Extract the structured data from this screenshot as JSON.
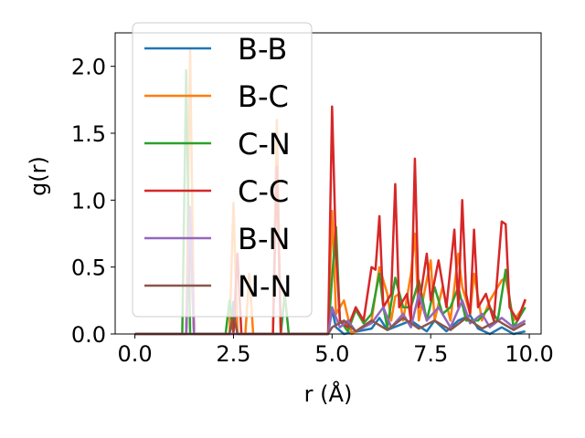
{
  "chart_data": {
    "type": "line",
    "title": "",
    "xlabel": "r (Å)",
    "ylabel": "g(r)",
    "xlim": [
      -0.5,
      10.3
    ],
    "ylim": [
      0,
      2.25
    ],
    "xticks": [
      0.0,
      2.5,
      5.0,
      7.5,
      10.0
    ],
    "xtick_labels": [
      "0.0",
      "2.5",
      "5.0",
      "7.5",
      "10.0"
    ],
    "yticks": [
      0.0,
      0.5,
      1.0,
      1.5,
      2.0
    ],
    "ytick_labels": [
      "0.0",
      "0.5",
      "1.0",
      "1.5",
      "2.0"
    ],
    "grid": false,
    "legend_position": "upper-left",
    "series": [
      {
        "name": "B-B",
        "color": "#1f77b4",
        "points": [
          [
            0.0,
            0
          ],
          [
            2.4,
            0
          ],
          [
            2.5,
            0.24
          ],
          [
            2.6,
            0
          ],
          [
            4.9,
            0
          ],
          [
            5.0,
            0.18
          ],
          [
            5.1,
            0.05
          ],
          [
            5.3,
            0
          ],
          [
            6.0,
            0.04
          ],
          [
            6.2,
            0.12
          ],
          [
            6.4,
            0.03
          ],
          [
            7.0,
            0.1
          ],
          [
            7.4,
            0.02
          ],
          [
            7.6,
            0.1
          ],
          [
            7.9,
            0.02
          ],
          [
            8.2,
            0.1
          ],
          [
            8.5,
            0.14
          ],
          [
            8.7,
            0.04
          ],
          [
            9.0,
            0
          ],
          [
            9.3,
            0.05
          ],
          [
            9.6,
            0
          ],
          [
            9.9,
            0.02
          ]
        ]
      },
      {
        "name": "B-C",
        "color": "#ff7f0e",
        "points": [
          [
            0.0,
            0
          ],
          [
            1.3,
            0
          ],
          [
            1.4,
            2.12
          ],
          [
            1.5,
            0
          ],
          [
            2.4,
            0
          ],
          [
            2.5,
            0.98
          ],
          [
            2.6,
            0
          ],
          [
            2.8,
            0
          ],
          [
            2.9,
            0.45
          ],
          [
            3.0,
            0
          ],
          [
            3.5,
            0
          ],
          [
            3.6,
            1.6
          ],
          [
            3.7,
            0
          ],
          [
            4.9,
            0
          ],
          [
            5.0,
            0.92
          ],
          [
            5.1,
            0.15
          ],
          [
            5.3,
            0.25
          ],
          [
            5.5,
            0
          ],
          [
            6.0,
            0.1
          ],
          [
            6.2,
            0.5
          ],
          [
            6.4,
            0.3
          ],
          [
            6.5,
            0.1
          ],
          [
            6.6,
            0.28
          ],
          [
            6.7,
            0.3
          ],
          [
            6.8,
            0.1
          ],
          [
            7.0,
            0.45
          ],
          [
            7.1,
            0.75
          ],
          [
            7.2,
            0.1
          ],
          [
            7.5,
            0.55
          ],
          [
            7.6,
            0.1
          ],
          [
            7.8,
            0.35
          ],
          [
            8.0,
            0.1
          ],
          [
            8.2,
            0.6
          ],
          [
            8.3,
            0.35
          ],
          [
            8.5,
            0.15
          ],
          [
            8.6,
            0.45
          ],
          [
            8.8,
            0.1
          ],
          [
            9.0,
            0.25
          ],
          [
            9.3,
            0.4
          ],
          [
            9.4,
            0.42
          ],
          [
            9.6,
            0.1
          ],
          [
            9.8,
            0.18
          ],
          [
            9.9,
            0.25
          ]
        ]
      },
      {
        "name": "C-N",
        "color": "#2ca02c",
        "points": [
          [
            0.0,
            0
          ],
          [
            1.2,
            0
          ],
          [
            1.3,
            1.97
          ],
          [
            1.4,
            0
          ],
          [
            2.3,
            0
          ],
          [
            2.4,
            0.25
          ],
          [
            2.5,
            0
          ],
          [
            3.7,
            0
          ],
          [
            3.8,
            0.3
          ],
          [
            3.9,
            0
          ],
          [
            4.9,
            0
          ],
          [
            5.0,
            0.42
          ],
          [
            5.1,
            0.8
          ],
          [
            5.2,
            0.1
          ],
          [
            5.4,
            0.02
          ],
          [
            5.6,
            0.18
          ],
          [
            5.8,
            0.08
          ],
          [
            6.0,
            0.15
          ],
          [
            6.2,
            0.45
          ],
          [
            6.3,
            0.2
          ],
          [
            6.4,
            0.05
          ],
          [
            6.6,
            0.42
          ],
          [
            6.8,
            0.2
          ],
          [
            7.0,
            0.2
          ],
          [
            7.2,
            0.4
          ],
          [
            7.4,
            0.1
          ],
          [
            7.6,
            0.35
          ],
          [
            7.8,
            0.15
          ],
          [
            8.0,
            0.2
          ],
          [
            8.2,
            0.35
          ],
          [
            8.4,
            0.1
          ],
          [
            8.7,
            0.1
          ],
          [
            9.0,
            0.2
          ],
          [
            9.2,
            0.1
          ],
          [
            9.4,
            0.48
          ],
          [
            9.6,
            0.05
          ],
          [
            9.9,
            0.2
          ]
        ]
      },
      {
        "name": "C-C",
        "color": "#d62728",
        "points": [
          [
            0.0,
            0
          ],
          [
            1.3,
            0
          ],
          [
            1.4,
            0.8
          ],
          [
            1.5,
            0
          ],
          [
            2.5,
            0
          ],
          [
            2.6,
            0.6
          ],
          [
            2.7,
            0
          ],
          [
            3.5,
            0
          ],
          [
            3.6,
            1.25
          ],
          [
            3.7,
            0
          ],
          [
            4.9,
            0
          ],
          [
            5.0,
            1.7
          ],
          [
            5.1,
            0.6
          ],
          [
            5.2,
            0.1
          ],
          [
            5.4,
            0.05
          ],
          [
            5.6,
            0.2
          ],
          [
            5.8,
            0.1
          ],
          [
            6.0,
            0.5
          ],
          [
            6.1,
            0.48
          ],
          [
            6.2,
            0.88
          ],
          [
            6.3,
            0.2
          ],
          [
            6.5,
            0.3
          ],
          [
            6.6,
            1.12
          ],
          [
            6.7,
            0.2
          ],
          [
            6.9,
            0.3
          ],
          [
            7.0,
            0.1
          ],
          [
            7.1,
            1.31
          ],
          [
            7.2,
            0.2
          ],
          [
            7.4,
            0.6
          ],
          [
            7.5,
            0.25
          ],
          [
            7.7,
            0.55
          ],
          [
            7.9,
            0.2
          ],
          [
            8.1,
            0.78
          ],
          [
            8.2,
            0.2
          ],
          [
            8.3,
            1.0
          ],
          [
            8.4,
            0.3
          ],
          [
            8.5,
            0.15
          ],
          [
            8.6,
            0.78
          ],
          [
            8.7,
            0.2
          ],
          [
            8.9,
            0.3
          ],
          [
            9.1,
            0.1
          ],
          [
            9.3,
            0.84
          ],
          [
            9.4,
            0.82
          ],
          [
            9.5,
            0.2
          ],
          [
            9.7,
            0.1
          ],
          [
            9.9,
            0.26
          ]
        ]
      },
      {
        "name": "B-N",
        "color": "#9467bd",
        "points": [
          [
            0.0,
            0
          ],
          [
            1.3,
            0
          ],
          [
            1.4,
            0.95
          ],
          [
            1.5,
            0
          ],
          [
            4.9,
            0
          ],
          [
            5.0,
            0.2
          ],
          [
            5.2,
            0.05
          ],
          [
            5.4,
            0.1
          ],
          [
            5.6,
            0.02
          ],
          [
            6.0,
            0.08
          ],
          [
            6.3,
            0.2
          ],
          [
            6.5,
            0.05
          ],
          [
            6.8,
            0.15
          ],
          [
            7.0,
            0.05
          ],
          [
            7.2,
            0.3
          ],
          [
            7.4,
            0.1
          ],
          [
            7.7,
            0.2
          ],
          [
            8.0,
            0.05
          ],
          [
            8.3,
            0.25
          ],
          [
            8.5,
            0.08
          ],
          [
            8.8,
            0.15
          ],
          [
            9.0,
            0.05
          ],
          [
            9.3,
            0.12
          ],
          [
            9.6,
            0.05
          ],
          [
            9.9,
            0.1
          ]
        ]
      },
      {
        "name": "N-N",
        "color": "#8c564b",
        "points": [
          [
            0.0,
            0
          ],
          [
            2.4,
            0
          ],
          [
            2.5,
            0.15
          ],
          [
            2.6,
            0
          ],
          [
            4.9,
            0
          ],
          [
            5.0,
            0.05
          ],
          [
            5.3,
            0.1
          ],
          [
            5.6,
            0.02
          ],
          [
            6.0,
            0.1
          ],
          [
            6.4,
            0.03
          ],
          [
            6.8,
            0.12
          ],
          [
            7.2,
            0.04
          ],
          [
            7.6,
            0.1
          ],
          [
            8.0,
            0.03
          ],
          [
            8.4,
            0.12
          ],
          [
            8.8,
            0.04
          ],
          [
            9.2,
            0.1
          ],
          [
            9.6,
            0.03
          ],
          [
            9.9,
            0.08
          ]
        ]
      }
    ]
  }
}
